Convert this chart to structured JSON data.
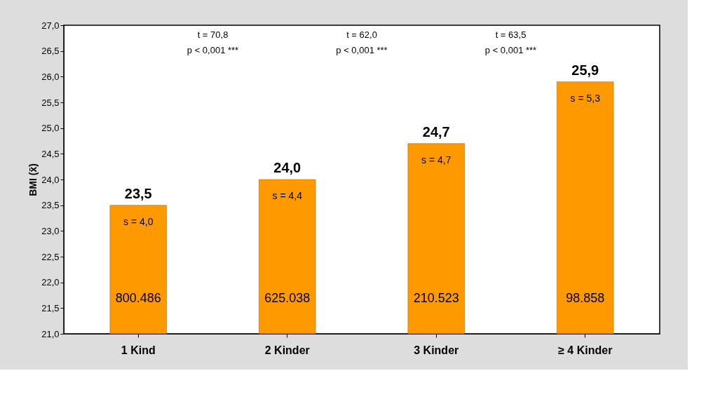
{
  "chart_data": {
    "type": "bar",
    "ylabel": "BMI  (x̄)",
    "categories": [
      "1 Kind",
      "2 Kinder",
      "3 Kinder",
      "≥ 4 Kinder"
    ],
    "values": [
      23.5,
      24.0,
      24.7,
      25.9
    ],
    "color": "#ff9900",
    "value_labels": [
      "23,5",
      "24,0",
      "24,7",
      "25,9"
    ],
    "ylim": [
      21,
      27
    ],
    "yticks": [
      {
        "value": 21,
        "label": "21,0"
      },
      {
        "value": 21.5,
        "label": "21,5"
      },
      {
        "value": 22,
        "label": "22,0"
      },
      {
        "value": 22.5,
        "label": "22,5"
      },
      {
        "value": 23,
        "label": "23,0"
      },
      {
        "value": 23.5,
        "label": "23,5"
      },
      {
        "value": 24,
        "label": "24,0"
      },
      {
        "value": 24.5,
        "label": "24,5"
      },
      {
        "value": 25,
        "label": "25,0"
      },
      {
        "value": 25.5,
        "label": "25,5"
      },
      {
        "value": 26,
        "label": "26,0"
      },
      {
        "value": 26.5,
        "label": "26,5"
      },
      {
        "value": 27,
        "label": "27,0"
      }
    ],
    "annotations": [
      "s = 4,0",
      "s = 4,4",
      "s = 4,7",
      "s = 5,3",
      "800.486",
      "625.038",
      "210.523",
      "98.858",
      "t = 70,8",
      "p < 0,001 ***",
      "t = 62,0",
      "p < 0,001 ***",
      "t = 63,5",
      "p < 0,001 ***"
    ]
  }
}
